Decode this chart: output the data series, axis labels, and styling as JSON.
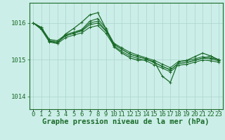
{
  "background_color": "#cceee8",
  "plot_bg_color": "#cceee8",
  "grid_color": "#aad4cc",
  "line_color": "#1a6b2a",
  "marker_color": "#1a6b2a",
  "ylabel_ticks": [
    1014,
    1015,
    1016
  ],
  "xlim": [
    -0.5,
    23.5
  ],
  "ylim": [
    1013.65,
    1016.55
  ],
  "xlabel": "Graphe pression niveau de la mer (hPa)",
  "xtick_labels": [
    "0",
    "1",
    "2",
    "3",
    "4",
    "5",
    "6",
    "7",
    "8",
    "9",
    "10",
    "11",
    "12",
    "13",
    "14",
    "15",
    "16",
    "17",
    "18",
    "19",
    "20",
    "21",
    "22",
    "23"
  ],
  "series": [
    [
      1016.0,
      1015.88,
      1015.55,
      1015.52,
      1015.68,
      1015.75,
      1015.82,
      1016.05,
      1016.12,
      1015.85,
      1015.45,
      1015.32,
      1015.2,
      1015.12,
      1015.05,
      1014.98,
      1014.88,
      1014.78,
      1014.95,
      1014.97,
      1015.02,
      1015.08,
      1015.05,
      1015.0
    ],
    [
      1016.0,
      1015.85,
      1015.52,
      1015.48,
      1015.65,
      1015.72,
      1015.78,
      1015.95,
      1016.0,
      1015.78,
      1015.42,
      1015.28,
      1015.15,
      1015.08,
      1015.02,
      1014.92,
      1014.82,
      1014.72,
      1014.9,
      1014.92,
      1014.98,
      1015.04,
      1015.02,
      1014.97
    ],
    [
      1016.0,
      1015.82,
      1015.48,
      1015.44,
      1015.6,
      1015.67,
      1015.73,
      1015.88,
      1015.93,
      1015.72,
      1015.38,
      1015.22,
      1015.1,
      1015.03,
      1014.97,
      1014.86,
      1014.77,
      1014.67,
      1014.85,
      1014.87,
      1014.93,
      1014.99,
      1014.97,
      1014.93
    ],
    [
      1016.0,
      1015.85,
      1015.52,
      1015.48,
      1015.65,
      1015.72,
      1015.8,
      1016.0,
      1016.05,
      1015.8,
      1015.42,
      1015.28,
      1015.15,
      1015.08,
      1015.02,
      1014.92,
      1014.82,
      1014.72,
      1014.9,
      1014.92,
      1014.98,
      1015.04,
      1015.1,
      1014.98
    ]
  ],
  "spiky_series_y": [
    1016.0,
    1015.88,
    1015.5,
    1015.45,
    1015.7,
    1015.85,
    1016.02,
    1016.22,
    1016.28,
    1015.85,
    1015.35,
    1015.18,
    1015.05,
    1014.98,
    1015.0,
    1014.95,
    1014.55,
    1014.38,
    1014.95,
    1014.98,
    1015.08,
    1015.18,
    1015.1,
    1015.0
  ],
  "xlabel_fontsize": 7.5,
  "xlabel_fontweight": "bold",
  "tick_fontsize": 6.5,
  "lw_series": 0.8,
  "lw_spiky": 0.9
}
